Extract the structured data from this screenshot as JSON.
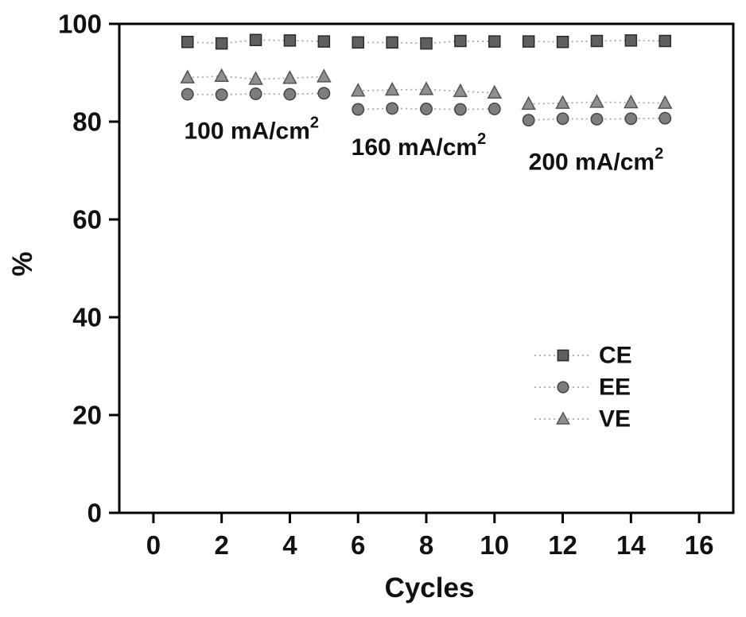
{
  "figure": {
    "background": "#ffffff",
    "frame_color": "#000000"
  },
  "chart_data": {
    "type": "line",
    "title": "",
    "xlabel": "Cycles",
    "ylabel": "%",
    "xlim": [
      -1,
      17
    ],
    "ylim": [
      0,
      100
    ],
    "x_ticks": [
      0,
      2,
      4,
      6,
      8,
      10,
      12,
      14,
      16
    ],
    "y_ticks": [
      0,
      20,
      40,
      60,
      80,
      100
    ],
    "grid": false,
    "x": [
      1,
      2,
      3,
      4,
      5,
      6,
      7,
      8,
      9,
      10,
      11,
      12,
      13,
      14,
      15
    ],
    "segments": [
      [
        1,
        5
      ],
      [
        6,
        10
      ],
      [
        11,
        15
      ]
    ],
    "series": [
      {
        "name": "CE",
        "marker": "square",
        "fill": "#5f5f5f",
        "edge": "#2b2b2b",
        "values": [
          96.3,
          96.0,
          96.7,
          96.6,
          96.4,
          96.2,
          96.2,
          96.0,
          96.5,
          96.4,
          96.4,
          96.3,
          96.5,
          96.6,
          96.5
        ]
      },
      {
        "name": "EE",
        "marker": "circle",
        "fill": "#7d7d7d",
        "edge": "#454545",
        "values": [
          85.6,
          85.5,
          85.7,
          85.6,
          85.8,
          82.5,
          82.7,
          82.6,
          82.5,
          82.6,
          80.3,
          80.6,
          80.5,
          80.6,
          80.7
        ]
      },
      {
        "name": "VE",
        "marker": "triangle",
        "fill": "#8f8f8f",
        "edge": "#555555",
        "values": [
          89.0,
          89.3,
          88.7,
          88.9,
          89.2,
          86.3,
          86.5,
          86.6,
          86.2,
          85.9,
          83.6,
          83.8,
          84.0,
          83.9,
          83.8
        ]
      }
    ],
    "line_style": {
      "color": "#a8a8a8",
      "dash": "2 4",
      "width": 1.8
    },
    "annotations": [
      {
        "text": "100 mA/cm",
        "sup": "2",
        "x": 0.9,
        "y": 76.5
      },
      {
        "text": "160 mA/cm",
        "sup": "2",
        "x": 5.8,
        "y": 73.2
      },
      {
        "text": "200 mA/cm",
        "sup": "2",
        "x": 11.0,
        "y": 70.2
      }
    ],
    "legend": {
      "position": "right-center",
      "items": [
        {
          "label": "CE",
          "series": "CE"
        },
        {
          "label": "EE",
          "series": "EE"
        },
        {
          "label": "VE",
          "series": "VE"
        }
      ]
    }
  }
}
